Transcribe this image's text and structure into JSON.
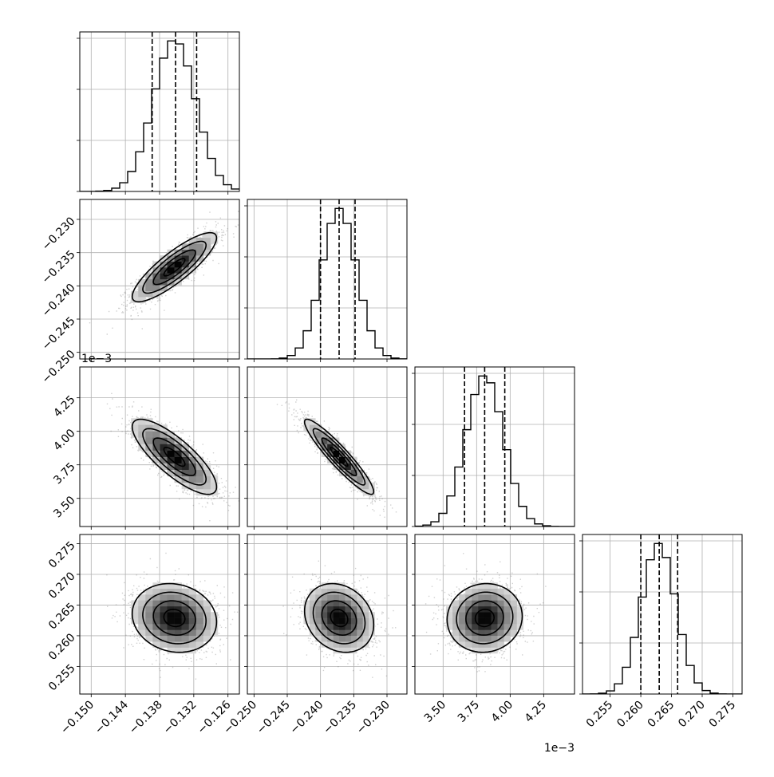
{
  "chart_data": {
    "type": "corner",
    "grid": true,
    "params": [
      {
        "range": [
          -0.152,
          -0.124
        ],
        "ticks": [
          -0.15,
          -0.144,
          -0.138,
          -0.132,
          -0.126
        ],
        "tick_labels": [
          "−0.150",
          "−0.144",
          "−0.138",
          "−0.132",
          "−0.126"
        ],
        "offset_label": "",
        "mean": -0.1354,
        "std": 0.0037,
        "quantiles": [
          -0.1393,
          -0.1352,
          -0.1315
        ]
      },
      {
        "range": [
          -0.251,
          -0.227
        ],
        "ticks": [
          -0.25,
          -0.245,
          -0.24,
          -0.235,
          -0.23
        ],
        "tick_labels": [
          "−0.250",
          "−0.245",
          "−0.240",
          "−0.235",
          "−0.230"
        ],
        "offset_label": "",
        "mean": -0.2372,
        "std": 0.0026,
        "quantiles": [
          -0.24,
          -0.2372,
          -0.2348
        ]
      },
      {
        "range": [
          3.29,
          4.48
        ],
        "ticks": [
          3.5,
          3.75,
          4.0,
          4.25
        ],
        "tick_labels": [
          "3.50",
          "3.75",
          "4.00",
          "4.25"
        ],
        "offset_label": "1e−3",
        "mean": 3.81,
        "std": 0.14,
        "quantiles": [
          3.66,
          3.81,
          3.96
        ]
      },
      {
        "range": [
          0.2505,
          0.2765
        ],
        "ticks": [
          0.255,
          0.26,
          0.265,
          0.27,
          0.275
        ],
        "tick_labels": [
          "0.255",
          "0.260",
          "0.265",
          "0.270",
          "0.275"
        ],
        "offset_label": "",
        "mean": 0.2629,
        "std": 0.0028,
        "quantiles": [
          0.26,
          0.263,
          0.266
        ]
      }
    ],
    "correlations": [
      [
        1.0,
        0.85,
        -0.8,
        -0.12
      ],
      [
        0.85,
        1.0,
        -0.93,
        -0.2
      ],
      [
        -0.8,
        -0.93,
        1.0,
        0.05
      ],
      [
        -0.12,
        -0.2,
        0.05,
        1.0
      ]
    ],
    "histogram_bins": 20,
    "contour_levels_sigma": [
      0.5,
      1.0,
      1.5,
      2.0
    ]
  }
}
